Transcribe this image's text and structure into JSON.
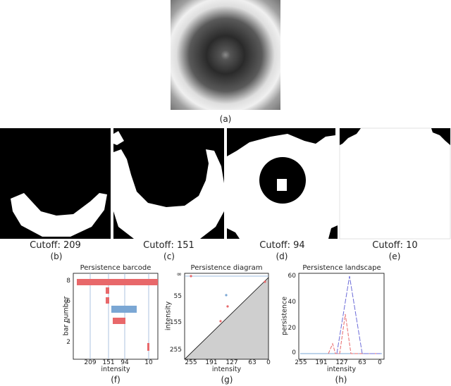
{
  "captions": {
    "a": "(a)",
    "b": "(b)",
    "c": "(c)",
    "d": "(d)",
    "e": "(e)",
    "f": "(f)",
    "g": "(g)",
    "h": "(h)"
  },
  "cutoffs": {
    "b": "Cutoff: 209",
    "c": "Cutoff: 151",
    "d": "Cutoff: 94",
    "e": "Cutoff: 10"
  },
  "barcode": {
    "title": "Persistence barcode",
    "ylabel": "bar number",
    "xlabel": "intensity",
    "xticks": [
      "209",
      "151",
      "94",
      "10"
    ],
    "yticks": [
      "8",
      "6",
      "4",
      "2"
    ],
    "red_color": "#e8686a",
    "blue_color": "#7ba7d4"
  },
  "diagram": {
    "title": "Persistence diagram",
    "ylabel": "intensity",
    "xlabel": "intensity",
    "xticks": [
      "255",
      "191",
      "127",
      "63",
      "0"
    ],
    "yticks": [
      "∞",
      "55",
      "155",
      "255"
    ]
  },
  "landscape": {
    "title": "Persistence landscape",
    "ylabel": "persistence",
    "xlabel": "intensity",
    "xticks": [
      "255",
      "191",
      "127",
      "63",
      "0"
    ],
    "yticks": [
      "60",
      "40",
      "20",
      "0"
    ]
  },
  "chart_data": [
    {
      "type": "bar",
      "title": "Persistence barcode",
      "xlabel": "intensity",
      "ylabel": "bar number",
      "x_reversed": true,
      "bars": [
        {
          "start": 255,
          "end": 0,
          "y": 8,
          "dim": 0
        },
        {
          "start": 158,
          "end": 148,
          "y": 6.4,
          "dim": 0
        },
        {
          "start": 158,
          "end": 148,
          "y": 5.8,
          "dim": 0
        },
        {
          "start": 120,
          "end": 60,
          "y": 4.6,
          "dim": 1
        },
        {
          "start": 120,
          "end": 108,
          "y": 3.9,
          "dim": 0
        },
        {
          "start": 120,
          "end": 92,
          "y": 3.5,
          "dim": 0
        },
        {
          "start": 13,
          "end": 10,
          "y": 1.0,
          "dim": 0
        },
        {
          "start": 13,
          "end": 10,
          "y": 0.7,
          "dim": 0
        }
      ]
    },
    {
      "type": "scatter",
      "title": "Persistence diagram",
      "xlabel": "intensity",
      "ylabel": "intensity",
      "points": [
        {
          "x": 250,
          "y": "∞",
          "dim": 0
        },
        {
          "x": 10,
          "y": 5,
          "dim": 0
        },
        {
          "x": 118,
          "y": 50,
          "dim": 1
        },
        {
          "x": 117,
          "y": 90,
          "dim": 0
        },
        {
          "x": 138,
          "y": 158,
          "dim": 0
        }
      ]
    },
    {
      "type": "line",
      "title": "Persistence landscape",
      "xlabel": "intensity",
      "ylabel": "persistence",
      "series": [
        {
          "dim": 0,
          "x": [
            255,
            155,
            150,
            145,
            130,
            110,
            90,
            0
          ],
          "y": [
            0,
            0,
            8,
            0,
            0,
            30,
            0,
            0
          ]
        },
        {
          "dim": 1,
          "x": [
            255,
            120,
            90,
            60,
            0
          ],
          "y": [
            0,
            0,
            60,
            0,
            0
          ]
        }
      ]
    }
  ]
}
